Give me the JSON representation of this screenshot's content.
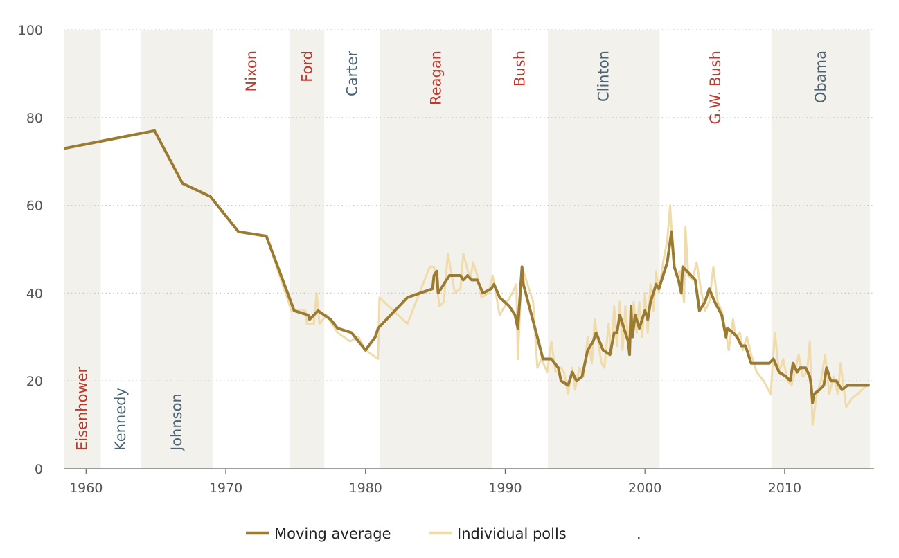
{
  "chart_data": {
    "type": "line",
    "xlim": [
      1958.4,
      1966.0
    ],
    "xlim_full": [
      1958.4,
      1984.0
    ],
    "x_range": [
      1958.4,
      2016.4
    ],
    "ylim": [
      0,
      100
    ],
    "y_ticks": [
      "0",
      "20",
      "40",
      "60",
      "80",
      "100"
    ],
    "x_ticks": [
      "1960",
      "1970",
      "1980",
      "1990",
      "2000",
      "2010"
    ],
    "grid": true,
    "legend_position": "bottom",
    "legend_extra": ".",
    "colors": {
      "republican": "#c0392b",
      "democrat": "#4a6478",
      "band": "#f3f1ec",
      "moving_average": "#9b7a32",
      "individual_polls": "#efdcaa"
    },
    "presidents": [
      {
        "name": "Eisenhower",
        "start": 1958.4,
        "end": 1961.05,
        "party": "R",
        "shaded": true,
        "label_pos": "low"
      },
      {
        "name": "Kennedy",
        "start": 1961.05,
        "end": 1963.9,
        "party": "D",
        "shaded": false,
        "label_pos": "low"
      },
      {
        "name": "Johnson",
        "start": 1963.9,
        "end": 1969.05,
        "party": "D",
        "shaded": true,
        "label_pos": "low"
      },
      {
        "name": "Nixon",
        "start": 1969.05,
        "end": 1974.6,
        "party": "R",
        "shaded": false,
        "label_pos": "high"
      },
      {
        "name": "Ford",
        "start": 1974.6,
        "end": 1977.05,
        "party": "R",
        "shaded": true,
        "label_pos": "high"
      },
      {
        "name": "Carter",
        "start": 1977.05,
        "end": 1981.05,
        "party": "D",
        "shaded": false,
        "label_pos": "high"
      },
      {
        "name": "Reagan",
        "start": 1981.05,
        "end": 1989.05,
        "party": "R",
        "shaded": true,
        "label_pos": "high"
      },
      {
        "name": "Bush",
        "start": 1989.05,
        "end": 1993.05,
        "party": "R",
        "shaded": false,
        "label_pos": "high"
      },
      {
        "name": "Clinton",
        "start": 1993.05,
        "end": 2001.05,
        "party": "D",
        "shaded": true,
        "label_pos": "high"
      },
      {
        "name": "G.W. Bush",
        "start": 2001.05,
        "end": 2009.05,
        "party": "R",
        "shaded": false,
        "label_pos": "high"
      },
      {
        "name": "Obama",
        "start": 2009.05,
        "end": 2016.1,
        "party": "D",
        "shaded": true,
        "label_pos": "high"
      }
    ],
    "series": [
      {
        "name": "Individual polls",
        "color": "#efdcaa",
        "points": [
          [
            1958.5,
            73
          ],
          [
            1964.9,
            77
          ],
          [
            1966.9,
            65
          ],
          [
            1968.9,
            62
          ],
          [
            1970.9,
            54
          ],
          [
            1972.9,
            53
          ],
          [
            1974.7,
            36
          ],
          [
            1975.7,
            36
          ],
          [
            1975.8,
            33
          ],
          [
            1976.3,
            33
          ],
          [
            1976.5,
            40
          ],
          [
            1976.7,
            33
          ],
          [
            1977.2,
            35
          ],
          [
            1978.0,
            31
          ],
          [
            1978.9,
            29
          ],
          [
            1979.5,
            30
          ],
          [
            1980.0,
            27
          ],
          [
            1980.9,
            25
          ],
          [
            1981.0,
            39
          ],
          [
            1982.0,
            36
          ],
          [
            1983.0,
            33
          ],
          [
            1984.6,
            46
          ],
          [
            1984.9,
            46
          ],
          [
            1985.3,
            37
          ],
          [
            1985.6,
            38
          ],
          [
            1985.9,
            49
          ],
          [
            1986.4,
            40
          ],
          [
            1986.8,
            41
          ],
          [
            1987.0,
            49
          ],
          [
            1987.5,
            43
          ],
          [
            1987.7,
            47
          ],
          [
            1988.0,
            44
          ],
          [
            1988.3,
            39
          ],
          [
            1988.8,
            40
          ],
          [
            1989.1,
            44
          ],
          [
            1989.6,
            35
          ],
          [
            1990.5,
            40
          ],
          [
            1990.8,
            42
          ],
          [
            1990.9,
            25
          ],
          [
            1991.2,
            46
          ],
          [
            1992.0,
            38
          ],
          [
            1992.3,
            23
          ],
          [
            1992.6,
            25
          ],
          [
            1993.0,
            22
          ],
          [
            1993.3,
            29
          ],
          [
            1993.6,
            22
          ],
          [
            1994.0,
            23
          ],
          [
            1994.2,
            22
          ],
          [
            1994.5,
            17
          ],
          [
            1994.8,
            23
          ],
          [
            1995.0,
            18
          ],
          [
            1995.3,
            23
          ],
          [
            1995.6,
            21
          ],
          [
            1995.9,
            30
          ],
          [
            1996.2,
            24
          ],
          [
            1996.4,
            34
          ],
          [
            1996.6,
            30
          ],
          [
            1996.9,
            24
          ],
          [
            1997.1,
            23
          ],
          [
            1997.4,
            33
          ],
          [
            1997.6,
            26
          ],
          [
            1997.8,
            37
          ],
          [
            1998.0,
            28
          ],
          [
            1998.2,
            38
          ],
          [
            1998.4,
            27
          ],
          [
            1998.6,
            37
          ],
          [
            1998.8,
            29
          ],
          [
            1999.0,
            30
          ],
          [
            1999.2,
            38
          ],
          [
            1999.4,
            31
          ],
          [
            1999.6,
            38
          ],
          [
            1999.8,
            30
          ],
          [
            2000.0,
            40
          ],
          [
            2000.2,
            31
          ],
          [
            2000.4,
            42
          ],
          [
            2000.6,
            36
          ],
          [
            2000.8,
            45
          ],
          [
            2001.0,
            40
          ],
          [
            2001.3,
            47
          ],
          [
            2001.6,
            52
          ],
          [
            2001.8,
            60
          ],
          [
            2002.0,
            50
          ],
          [
            2002.2,
            44
          ],
          [
            2002.5,
            45
          ],
          [
            2002.8,
            38
          ],
          [
            2002.9,
            55
          ],
          [
            2003.1,
            44
          ],
          [
            2003.4,
            43
          ],
          [
            2003.7,
            47
          ],
          [
            2004.0,
            41
          ],
          [
            2004.3,
            36
          ],
          [
            2004.6,
            38
          ],
          [
            2004.9,
            46
          ],
          [
            2005.2,
            38
          ],
          [
            2005.5,
            36
          ],
          [
            2005.8,
            31
          ],
          [
            2006.0,
            27
          ],
          [
            2006.3,
            34
          ],
          [
            2006.5,
            30
          ],
          [
            2006.8,
            31
          ],
          [
            2007.0,
            27
          ],
          [
            2007.3,
            30
          ],
          [
            2007.6,
            26
          ],
          [
            2008.0,
            22
          ],
          [
            2008.5,
            20
          ],
          [
            2009.0,
            17
          ],
          [
            2009.3,
            31
          ],
          [
            2009.6,
            22
          ],
          [
            2009.9,
            25
          ],
          [
            2010.2,
            20
          ],
          [
            2010.5,
            19
          ],
          [
            2010.8,
            23
          ],
          [
            2011.0,
            26
          ],
          [
            2011.3,
            21
          ],
          [
            2011.6,
            22
          ],
          [
            2011.8,
            29
          ],
          [
            2012.0,
            10
          ],
          [
            2012.3,
            17
          ],
          [
            2012.6,
            20
          ],
          [
            2012.9,
            26
          ],
          [
            2013.2,
            17
          ],
          [
            2013.5,
            21
          ],
          [
            2013.8,
            17
          ],
          [
            2014.0,
            24
          ],
          [
            2014.4,
            14
          ],
          [
            2014.8,
            16
          ],
          [
            2015.2,
            17
          ],
          [
            2015.9,
            19
          ]
        ]
      },
      {
        "name": "Moving average",
        "color": "#9b7a32",
        "points": [
          [
            1958.5,
            73
          ],
          [
            1964.9,
            77
          ],
          [
            1966.9,
            65
          ],
          [
            1968.9,
            62
          ],
          [
            1970.9,
            54
          ],
          [
            1972.9,
            53
          ],
          [
            1974.9,
            36
          ],
          [
            1975.9,
            35
          ],
          [
            1976.0,
            34
          ],
          [
            1976.3,
            35
          ],
          [
            1976.6,
            36
          ],
          [
            1977.5,
            34
          ],
          [
            1978.0,
            32
          ],
          [
            1979.0,
            31
          ],
          [
            1980.0,
            27
          ],
          [
            1980.7,
            30
          ],
          [
            1980.9,
            32
          ],
          [
            1983.0,
            39
          ],
          [
            1984.8,
            41
          ],
          [
            1984.9,
            44
          ],
          [
            1985.1,
            45
          ],
          [
            1985.2,
            40
          ],
          [
            1986.0,
            44
          ],
          [
            1986.8,
            44
          ],
          [
            1987.0,
            43
          ],
          [
            1987.3,
            44
          ],
          [
            1987.6,
            43
          ],
          [
            1988.0,
            43
          ],
          [
            1988.4,
            40
          ],
          [
            1989.0,
            41
          ],
          [
            1989.2,
            42
          ],
          [
            1989.6,
            39
          ],
          [
            1990.3,
            37
          ],
          [
            1990.7,
            35
          ],
          [
            1990.9,
            32
          ],
          [
            1991.2,
            46
          ],
          [
            1991.3,
            42
          ],
          [
            1992.3,
            30
          ],
          [
            1992.7,
            25
          ],
          [
            1993.3,
            25
          ],
          [
            1993.8,
            23
          ],
          [
            1994.0,
            20
          ],
          [
            1994.5,
            19
          ],
          [
            1994.8,
            22
          ],
          [
            1995.1,
            20
          ],
          [
            1995.5,
            21
          ],
          [
            1995.9,
            27
          ],
          [
            1996.3,
            29
          ],
          [
            1996.5,
            31
          ],
          [
            1997.0,
            27
          ],
          [
            1997.5,
            26
          ],
          [
            1997.8,
            31
          ],
          [
            1998.0,
            31
          ],
          [
            1998.2,
            35
          ],
          [
            1998.5,
            32
          ],
          [
            1998.8,
            29
          ],
          [
            1998.9,
            26
          ],
          [
            1999.0,
            37
          ],
          [
            1999.1,
            30
          ],
          [
            1999.3,
            35
          ],
          [
            1999.6,
            32
          ],
          [
            2000.0,
            36
          ],
          [
            2000.2,
            34
          ],
          [
            2000.4,
            38
          ],
          [
            2000.6,
            40
          ],
          [
            2000.8,
            42
          ],
          [
            2001.0,
            41
          ],
          [
            2001.3,
            44
          ],
          [
            2001.6,
            47
          ],
          [
            2001.9,
            54
          ],
          [
            2002.1,
            46
          ],
          [
            2002.4,
            43
          ],
          [
            2002.6,
            40
          ],
          [
            2002.7,
            46
          ],
          [
            2003.0,
            45
          ],
          [
            2003.6,
            43
          ],
          [
            2003.9,
            36
          ],
          [
            2004.3,
            38
          ],
          [
            2004.6,
            41
          ],
          [
            2005.0,
            38
          ],
          [
            2005.5,
            35
          ],
          [
            2005.8,
            30
          ],
          [
            2005.9,
            32
          ],
          [
            2006.3,
            31
          ],
          [
            2006.6,
            30
          ],
          [
            2006.9,
            28
          ],
          [
            2007.2,
            28
          ],
          [
            2007.6,
            24
          ],
          [
            2008.4,
            24
          ],
          [
            2008.9,
            24
          ],
          [
            2009.2,
            25
          ],
          [
            2009.6,
            22
          ],
          [
            2010.1,
            21
          ],
          [
            2010.4,
            20
          ],
          [
            2010.6,
            24
          ],
          [
            2010.9,
            22
          ],
          [
            2011.1,
            23
          ],
          [
            2011.5,
            23
          ],
          [
            2011.8,
            21
          ],
          [
            2011.9,
            19
          ],
          [
            2012.0,
            15
          ],
          [
            2012.1,
            17
          ],
          [
            2012.5,
            18
          ],
          [
            2012.8,
            19
          ],
          [
            2013.0,
            23
          ],
          [
            2013.3,
            20
          ],
          [
            2013.7,
            20
          ],
          [
            2013.9,
            19
          ],
          [
            2014.1,
            18
          ],
          [
            2014.5,
            19
          ],
          [
            2015.0,
            19
          ],
          [
            2016.0,
            19
          ]
        ]
      }
    ]
  }
}
